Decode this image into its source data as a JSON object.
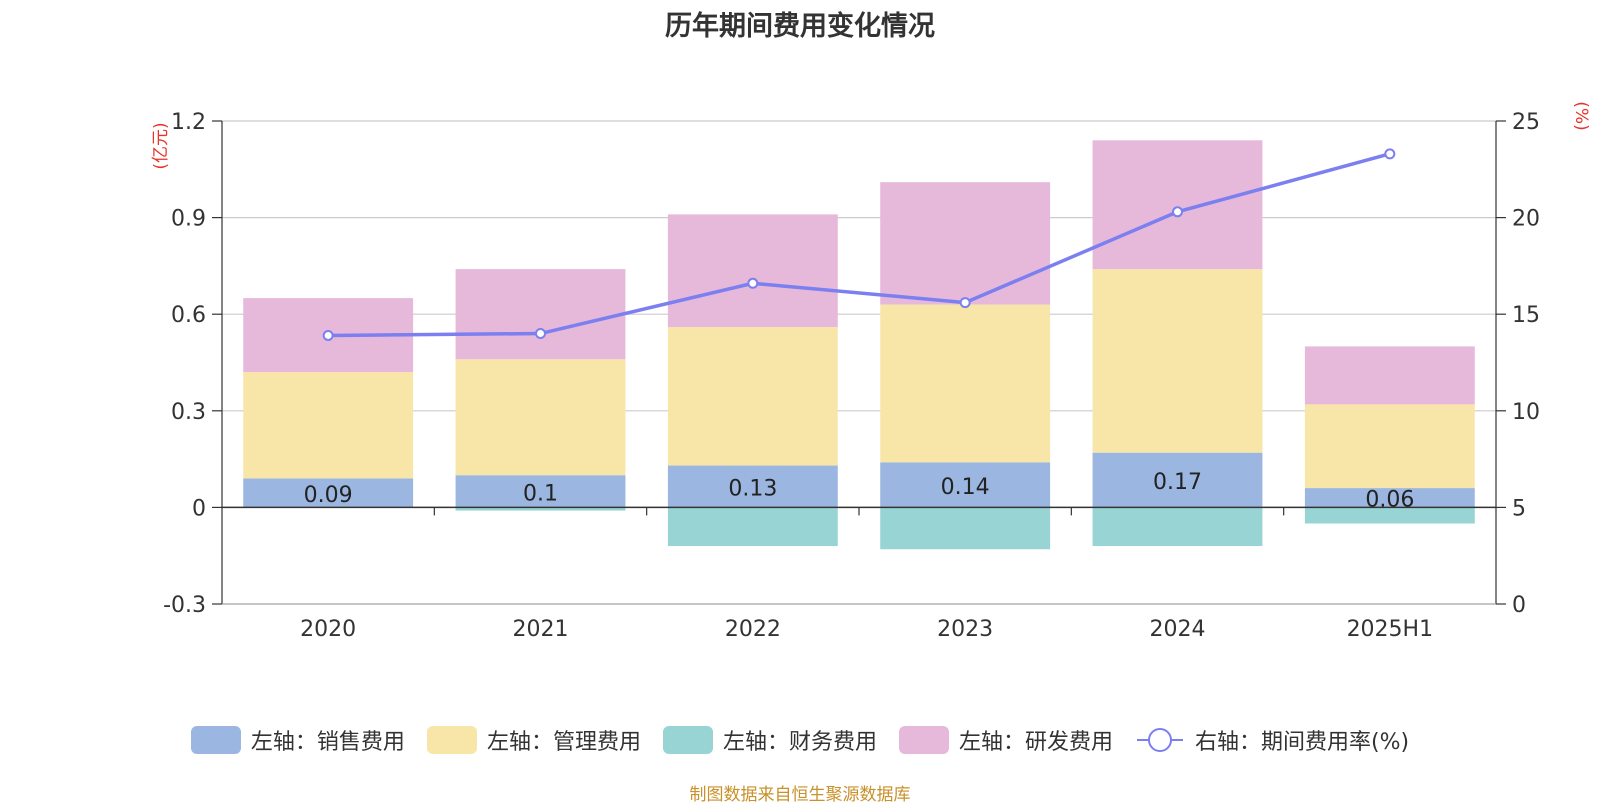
{
  "title": "历年期间费用变化情况",
  "source_note": "制图数据来自恒生聚源数据库",
  "colors": {
    "sales": "#9bb6e0",
    "admin": "#f8e6a8",
    "finance": "#98d4d4",
    "rnd": "#e6b8da",
    "line": "#7b7ff0",
    "axis_unit": "#e8332a",
    "text": "#333333",
    "grid": "#cccccc"
  },
  "chart_data": {
    "type": "bar",
    "stacked": true,
    "categories": [
      "2020",
      "2021",
      "2022",
      "2023",
      "2024",
      "2025H1"
    ],
    "left_axis": {
      "unit_label": "(亿元)",
      "ylim": [
        -0.3,
        1.2
      ],
      "ticks": [
        "1.2",
        "0.9",
        "0.6",
        "0.3",
        "0",
        "-0.3"
      ],
      "tick_values": [
        1.2,
        0.9,
        0.6,
        0.3,
        0,
        -0.3
      ]
    },
    "right_axis": {
      "unit_label": "(%)",
      "ylim": [
        0,
        25
      ],
      "ticks": [
        "25",
        "20",
        "15",
        "10",
        "5",
        "0"
      ],
      "tick_values": [
        25,
        20,
        15,
        10,
        5,
        0
      ]
    },
    "series": [
      {
        "name": "左轴：销售费用",
        "axis": "left",
        "color_key": "sales",
        "values": [
          0.09,
          0.1,
          0.13,
          0.14,
          0.17,
          0.06
        ],
        "labels": [
          "0.09",
          "0.1",
          "0.13",
          "0.14",
          "0.17",
          "0.06"
        ]
      },
      {
        "name": "左轴：管理费用",
        "axis": "left",
        "color_key": "admin",
        "values": [
          0.33,
          0.36,
          0.43,
          0.49,
          0.57,
          0.26
        ]
      },
      {
        "name": "左轴：财务费用",
        "axis": "left",
        "color_key": "finance",
        "values": [
          0.0,
          -0.01,
          -0.12,
          -0.13,
          -0.12,
          -0.05
        ]
      },
      {
        "name": "左轴：研发费用",
        "axis": "left",
        "color_key": "rnd",
        "values": [
          0.23,
          0.28,
          0.35,
          0.38,
          0.4,
          0.18
        ]
      },
      {
        "name": "右轴：期间费用率(%)",
        "axis": "right",
        "type": "line",
        "color_key": "line",
        "values": [
          13.9,
          14.0,
          16.6,
          15.6,
          20.3,
          23.3
        ]
      }
    ],
    "grid": true,
    "legend_position": "bottom"
  }
}
